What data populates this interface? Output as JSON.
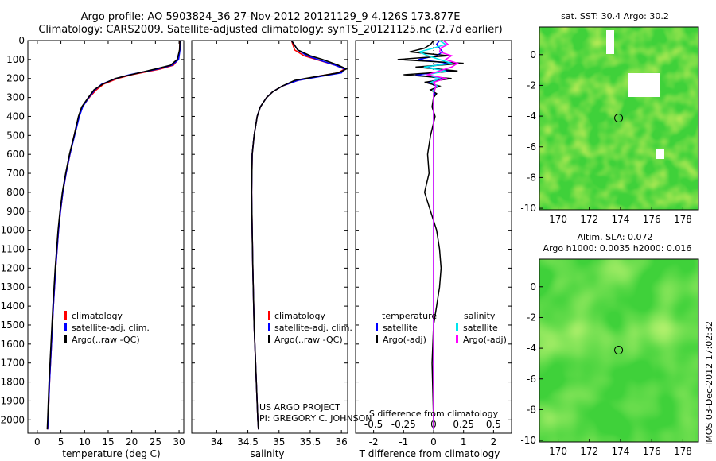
{
  "header": {
    "title_line1": "Argo profile: AO 5903824_36 27-Nov-2012 20121129_9 4.126S 173.877E",
    "title_line2": "Climatology: CARS2009. Satellite-adjusted climatology: synTS_20121125.nc (2.7d earlier)"
  },
  "right": {
    "sst_title": "sat. SST: 30.4 Argo: 30.2",
    "sla_title1": "Altim. SLA: 0.072",
    "sla_title2": "Argo h1000: 0.0035 h2000: 0.016",
    "timestamp": "IMOS 03-Dec-2012 17:02:32"
  },
  "annotations": {
    "project_line1": "US ARGO PROJECT",
    "project_line2": "PI: GREGORY C. JOHNSON"
  },
  "colors": {
    "climatology": "#ff0000",
    "satellite": "#0000ff",
    "argo": "#000000",
    "sal_satellite": "#00e5ee",
    "sal_argo": "#ff00ff"
  },
  "chart_data": [
    {
      "type": "line",
      "xlabel": "temperature (deg C)",
      "xlim": [
        -2,
        31
      ],
      "xticks": [
        0,
        5,
        10,
        15,
        20,
        25,
        30
      ],
      "ylim": [
        2070,
        0
      ],
      "yticks": [
        0,
        100,
        200,
        300,
        400,
        500,
        600,
        700,
        800,
        900,
        1000,
        1100,
        1200,
        1300,
        1400,
        1500,
        1600,
        1700,
        1800,
        1900,
        2000
      ],
      "legend": [
        "climatology",
        "satellite-adj. clim.",
        "Argo(..raw -QC)"
      ],
      "depth": [
        0,
        50,
        100,
        130,
        150,
        180,
        200,
        230,
        260,
        300,
        350,
        400,
        500,
        600,
        700,
        800,
        900,
        1000,
        1200,
        1400,
        1600,
        1800,
        2000,
        2050
      ],
      "series": [
        {
          "name": "climatology",
          "values": [
            30.2,
            30.1,
            29.8,
            28.8,
            26,
            20,
            17,
            14,
            12.5,
            11,
            9.5,
            8.8,
            7.8,
            6.9,
            6.1,
            5.4,
            4.9,
            4.5,
            3.9,
            3.4,
            3.0,
            2.6,
            2.3,
            2.2
          ]
        },
        {
          "name": "satellite-adj. clim.",
          "values": [
            30.4,
            30.2,
            29.9,
            28.5,
            25.5,
            19.5,
            16.6,
            13.6,
            12.2,
            10.9,
            9.6,
            8.9,
            7.9,
            6.9,
            6.1,
            5.4,
            4.9,
            4.5,
            3.9,
            3.4,
            3.0,
            2.6,
            2.3,
            2.2
          ]
        },
        {
          "name": "Argo(..raw -QC)",
          "values": [
            30.2,
            30.1,
            29.6,
            28.2,
            25,
            19.8,
            16.5,
            13.8,
            12.0,
            10.8,
            9.4,
            8.7,
            7.8,
            6.8,
            6.0,
            5.3,
            4.8,
            4.4,
            3.8,
            3.3,
            2.9,
            2.5,
            2.2,
            2.1
          ]
        }
      ]
    },
    {
      "type": "line",
      "xlabel": "salinity",
      "xlim": [
        33.6,
        36.1
      ],
      "xticks": [
        34,
        34.5,
        35,
        35.5,
        36
      ],
      "ylim": [
        2070,
        0
      ],
      "legend": [
        "climatology",
        "satellite-adj. clim.",
        "Argo(..raw -QC)"
      ],
      "depth": [
        0,
        50,
        80,
        100,
        130,
        150,
        170,
        190,
        210,
        240,
        270,
        300,
        350,
        400,
        500,
        600,
        800,
        1000,
        1200,
        1500,
        2000,
        2050
      ],
      "series": [
        {
          "name": "climatology",
          "values": [
            35.2,
            35.25,
            35.4,
            35.6,
            35.9,
            36.05,
            35.95,
            35.6,
            35.3,
            35.05,
            34.9,
            34.8,
            34.7,
            34.65,
            34.6,
            34.57,
            34.56,
            34.57,
            34.58,
            34.6,
            34.66,
            34.67
          ]
        },
        {
          "name": "satellite-adj. clim.",
          "values": [
            35.2,
            35.3,
            35.45,
            35.62,
            35.9,
            36.05,
            36.0,
            35.65,
            35.3,
            35.05,
            34.9,
            34.8,
            34.7,
            34.65,
            34.6,
            34.57,
            34.56,
            34.57,
            34.58,
            34.6,
            34.66,
            34.67
          ]
        },
        {
          "name": "Argo(..raw -QC)",
          "values": [
            35.2,
            35.3,
            35.5,
            35.7,
            35.95,
            36.08,
            35.95,
            35.6,
            35.25,
            35.05,
            34.9,
            34.8,
            34.7,
            34.65,
            34.6,
            34.57,
            34.56,
            34.57,
            34.58,
            34.6,
            34.66,
            34.67
          ]
        }
      ]
    },
    {
      "type": "line",
      "xlabel": "T difference from climatology",
      "xlabel_top": "S difference from climatology",
      "xlim": [
        -2.6,
        2.6
      ],
      "xticks": [
        -2,
        -1,
        0,
        1,
        2
      ],
      "xticks_top": [
        -0.5,
        -0.25,
        0,
        0.25,
        0.5
      ],
      "xlim_top": [
        -0.65,
        0.65
      ],
      "ylim": [
        2070,
        0
      ],
      "legend_left_title": "temperature",
      "legend_right_title": "salinity",
      "legend": [
        "satellite",
        "Argo(-adj)",
        "satellite",
        "Argo(-adj)"
      ],
      "depth": [
        0,
        20,
        40,
        60,
        80,
        100,
        120,
        140,
        160,
        180,
        200,
        220,
        240,
        260,
        280,
        300,
        350,
        400,
        500,
        600,
        700,
        800,
        900,
        1000,
        1100,
        1200,
        1300,
        1400,
        1500,
        1700,
        2000,
        2050
      ],
      "series": [
        {
          "name": "T satellite",
          "values": [
            0.2,
            0.1,
            0.2,
            0.3,
            0.1,
            -0.5,
            0.5,
            -0.3,
            0.6,
            -0.6,
            0.3,
            -0.2,
            0.1,
            0,
            0.05,
            0,
            0,
            0,
            0,
            0,
            0,
            0,
            0,
            0,
            0,
            0,
            0,
            0,
            0,
            0,
            0,
            0
          ]
        },
        {
          "name": "T Argo(-adj)",
          "values": [
            0,
            -0.1,
            -0.3,
            -0.8,
            0.5,
            -1.2,
            1.0,
            -0.6,
            0.8,
            -1.0,
            0.6,
            -0.3,
            0.2,
            -0.1,
            0.1,
            0,
            -0.05,
            0.05,
            -0.1,
            -0.2,
            -0.15,
            -0.3,
            -0.1,
            0.1,
            0.2,
            0.25,
            0.2,
            0.1,
            0,
            -0.05,
            0,
            0
          ]
        },
        {
          "name": "S satellite",
          "values": [
            0.05,
            0.1,
            0.0,
            -0.12,
            -0.05,
            0.05,
            0.15,
            -0.08,
            0.1,
            -0.05,
            0.05,
            -0.02,
            0.03,
            0,
            0,
            0,
            0,
            0,
            0,
            0,
            0,
            0,
            0,
            0,
            0,
            0,
            0,
            0,
            0,
            0,
            0,
            0
          ]
        },
        {
          "name": "S Argo(-adj)",
          "values": [
            0.08,
            0.12,
            0.06,
            0.05,
            0.15,
            0.1,
            0.2,
            0.15,
            0.05,
            -0.05,
            0.1,
            0.0,
            0.02,
            0.01,
            0,
            0,
            0,
            0,
            0,
            0,
            0,
            0,
            0,
            0,
            0,
            0,
            0,
            0,
            0,
            0,
            0,
            0
          ]
        }
      ]
    }
  ],
  "maps": {
    "xticks": [
      170,
      172,
      174,
      176,
      178
    ],
    "yticks": [
      0,
      -2,
      -4,
      -6,
      -8,
      -10
    ],
    "xlim": [
      168.8,
      179
    ],
    "ylim": [
      -10.1,
      1.8
    ],
    "float_position": {
      "lon": 173.877,
      "lat": -4.126
    }
  }
}
